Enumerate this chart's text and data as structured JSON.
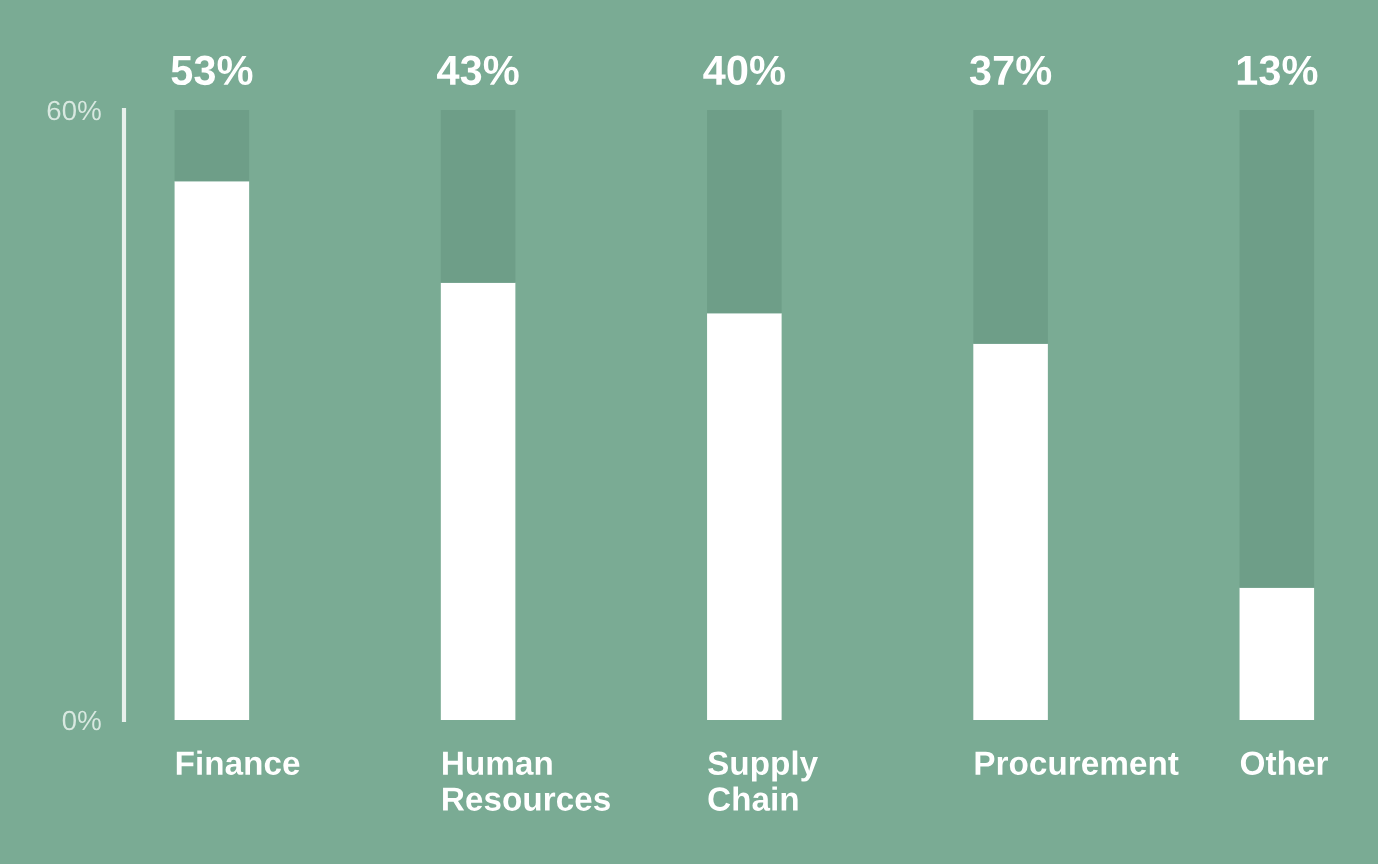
{
  "chart_data": {
    "type": "bar",
    "stacked": true,
    "categories": [
      "Finance",
      "Human Resources",
      "Supply Chain",
      "Procurement",
      "Other"
    ],
    "series": [
      {
        "color": "#ffffff",
        "values": [
          53,
          43,
          40,
          37,
          13
        ]
      },
      {
        "color": "#6e9e88",
        "values": [
          7,
          17,
          20,
          23,
          47
        ]
      }
    ],
    "annotations": [
      {
        "text": "53%",
        "x": "Finance",
        "y": 60
      },
      {
        "text": "43%",
        "x": "Human Resources",
        "y": 60
      },
      {
        "text": "40%",
        "x": "Supply Chain",
        "y": 60
      },
      {
        "text": "37%",
        "x": "Procurement",
        "y": 60
      },
      {
        "text": "13%",
        "x": "Other",
        "y": 60
      }
    ],
    "ylim": [
      0,
      60
    ],
    "yticks": [
      {
        "value": 0,
        "label": "0%"
      },
      {
        "value": 60,
        "label": "60%"
      }
    ],
    "grid": false,
    "legend": false
  }
}
